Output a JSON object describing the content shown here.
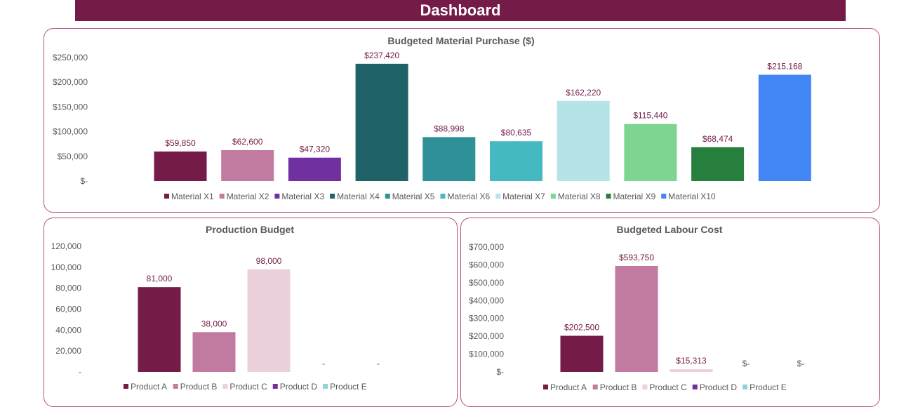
{
  "header": {
    "title": "Dashboard",
    "color": "#741b47"
  },
  "chart_data": [
    {
      "id": "material",
      "type": "bar",
      "title": "Budgeted Material Purchase ($)",
      "xlabel": "",
      "ylabel": "",
      "categories": [
        "Material X1",
        "Material X2",
        "Material X3",
        "Material X4",
        "Material X5",
        "Material X6",
        "Material X7",
        "Material X8",
        "Material X9",
        "Material X10"
      ],
      "values": [
        59850,
        62600,
        47320,
        237420,
        88998,
        80635,
        162220,
        115440,
        68474,
        215168
      ],
      "data_labels": [
        "$59,850",
        "$62,600",
        "$47,320",
        "$237,420",
        "$88,998",
        "$80,635",
        "$162,220",
        "$115,440",
        "$68,474",
        "$215,168"
      ],
      "colors": [
        "#741b47",
        "#c27ba0",
        "#7030a0",
        "#1f6369",
        "#2e9198",
        "#45b9c2",
        "#b4e3e8",
        "#7dd591",
        "#277f3e",
        "#4285f4"
      ],
      "ylim": [
        0,
        250000
      ],
      "yticks": [
        0,
        50000,
        100000,
        150000,
        200000,
        250000
      ],
      "ytick_labels": [
        "$-",
        "$50,000",
        "$100,000",
        "$150,000",
        "$200,000",
        "$250,000"
      ],
      "grid": false,
      "legend": "bottom"
    },
    {
      "id": "production",
      "type": "bar",
      "title": "Production Budget",
      "xlabel": "",
      "ylabel": "",
      "categories": [
        "Product A",
        "Product B",
        "Product C",
        "Product D",
        "Product E"
      ],
      "values": [
        81000,
        38000,
        98000,
        0,
        0
      ],
      "data_labels": [
        "81,000",
        "38,000",
        "98,000",
        "-",
        "-"
      ],
      "colors": [
        "#741b47",
        "#c27ba0",
        "#ead1dc",
        "#7030a0",
        "#8fd3d8"
      ],
      "ylim": [
        0,
        120000
      ],
      "yticks": [
        0,
        20000,
        40000,
        60000,
        80000,
        100000,
        120000
      ],
      "ytick_labels": [
        "-",
        "20,000",
        "40,000",
        "60,000",
        "80,000",
        "100,000",
        "120,000"
      ],
      "grid": false,
      "legend": "bottom"
    },
    {
      "id": "labour",
      "type": "bar",
      "title": "Budgeted Labour Cost",
      "xlabel": "",
      "ylabel": "",
      "categories": [
        "Product A",
        "Product B",
        "Product C",
        "Product D",
        "Product E"
      ],
      "values": [
        202500,
        593750,
        15313,
        0,
        0
      ],
      "data_labels": [
        "$202,500",
        "$593,750",
        "$15,313",
        "$-",
        "$-"
      ],
      "colors": [
        "#741b47",
        "#c27ba0",
        "#ead1dc",
        "#7030a0",
        "#8fd3d8"
      ],
      "ylim": [
        0,
        700000
      ],
      "yticks": [
        0,
        100000,
        200000,
        300000,
        400000,
        500000,
        600000,
        700000
      ],
      "ytick_labels": [
        "$-",
        "$100,000",
        "$200,000",
        "$300,000",
        "$400,000",
        "$500,000",
        "$600,000",
        "$700,000"
      ],
      "grid": false,
      "legend": "bottom"
    }
  ]
}
